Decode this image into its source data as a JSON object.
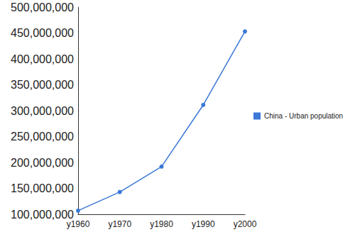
{
  "chart_data": {
    "type": "line",
    "categories": [
      "y1960",
      "y1970",
      "y1980",
      "y1990",
      "y2000"
    ],
    "series": [
      {
        "name": "China - Urban population",
        "color": "#3b78d8",
        "marker": "circle",
        "values": [
          107000000,
          143000000,
          192000000,
          311000000,
          453000000
        ]
      }
    ],
    "ylim": [
      100000000,
      500000000
    ],
    "yticks": [
      {
        "value": 100000000,
        "label": "100,000,000"
      },
      {
        "value": 150000000,
        "label": "150,000,000"
      },
      {
        "value": 200000000,
        "label": "200,000,000"
      },
      {
        "value": 250000000,
        "label": "250,000,000"
      },
      {
        "value": 300000000,
        "label": "300,000,000"
      },
      {
        "value": 350000000,
        "label": "350,000,000"
      },
      {
        "value": 400000000,
        "label": "400,000,000"
      },
      {
        "value": 450000000,
        "label": "450,000,000"
      },
      {
        "value": 500000000,
        "label": "500,000,000"
      }
    ],
    "grid": false,
    "legend": "right"
  }
}
